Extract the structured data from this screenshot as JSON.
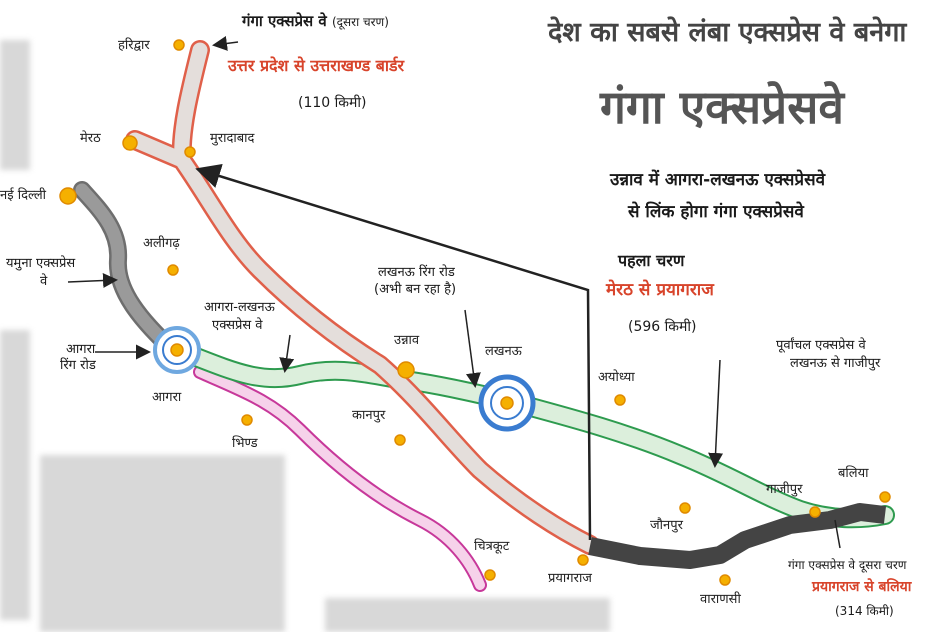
{
  "headline": {
    "line1": "देश का सबसे लंबा एक्सप्रेस वे बनेगा",
    "line2": "गंगा एक्सप्रेसवे",
    "sub1": "उन्नाव में आगरा-लखनऊ एक्सप्रेसवे",
    "sub2": "से लिंक होगा गंगा एक्सप्रेसवे"
  },
  "phase2_north": {
    "title": "गंगा एक्सप्रेस वे",
    "title_suffix": "(दूसरा चरण)",
    "route": "उत्तर प्रदेश से उत्तराखण्ड बार्डर",
    "length": "(110 किमी)"
  },
  "phase1": {
    "title": "पहला चरण",
    "route": "मेरठ से प्रयागराज",
    "length": "(596 किमी)"
  },
  "phase2_east": {
    "title": "गंगा एक्सप्रेस वे दूसरा चरण",
    "route": "प्रयागराज से बलिया",
    "length": "(314 किमी)"
  },
  "annotations": {
    "yamuna": "यमुना एक्सप्रेस",
    "yamuna2": "वे",
    "agra_ring": "आगरा",
    "agra_ring2": "रिंग रोड",
    "agra_lucknow": "आगरा-लखनऊ",
    "agra_lucknow2": "एक्सप्रेस वे",
    "lucknow_ring": "लखनऊ रिंग रोड",
    "lucknow_ring2": "(अभी बन रहा है)",
    "purvanchal": "पूर्वांचल एक्सप्रेस वे",
    "purvanchal2": "लखनऊ से गाजीपुर"
  },
  "cities": {
    "haridwar": "हरिद्वार",
    "meerut": "मेरठ",
    "moradabad": "मुरादाबाद",
    "delhi": "नई दिल्ली",
    "aligarh": "अलीगढ़",
    "agra": "आगरा",
    "bhind": "भिण्ड",
    "unnao": "उन्नाव",
    "kanpur": "कानपुर",
    "lucknow": "लखनऊ",
    "ayodhya": "अयोध्या",
    "chitrakoot": "चित्रकूट",
    "prayagraj": "प्रयागराज",
    "jaunpur": "जौनपुर",
    "varanasi": "वाराणसी",
    "ghazipur": "गाजीपुर",
    "ballia": "बलिया"
  },
  "colors": {
    "ganga_expressway": "#e2ddda",
    "ganga_outline": "#e0604a",
    "yamuna_expressway": "#8e8e8e",
    "agra_lucknow": "#cfe9d2",
    "agra_lucknow_outline": "#2e9b4f",
    "bundelkhand": "#f6d2ea",
    "bundelkhand_outline": "#c7389a",
    "phase2_east": "#444444",
    "city_dot": "#f5b000",
    "ring_road": "#3a7cd0"
  }
}
